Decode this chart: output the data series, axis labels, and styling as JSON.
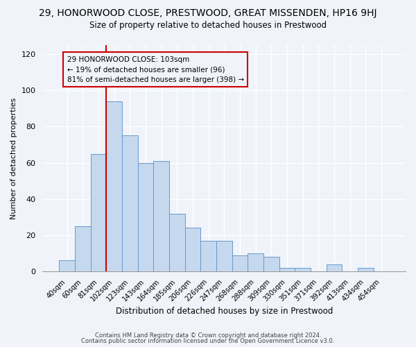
{
  "title": "29, HONORWOOD CLOSE, PRESTWOOD, GREAT MISSENDEN, HP16 9HJ",
  "subtitle": "Size of property relative to detached houses in Prestwood",
  "xlabel": "Distribution of detached houses by size in Prestwood",
  "ylabel": "Number of detached properties",
  "bar_labels": [
    "40sqm",
    "60sqm",
    "81sqm",
    "102sqm",
    "123sqm",
    "143sqm",
    "164sqm",
    "185sqm",
    "206sqm",
    "226sqm",
    "247sqm",
    "268sqm",
    "288sqm",
    "309sqm",
    "330sqm",
    "351sqm",
    "371sqm",
    "392sqm",
    "413sqm",
    "434sqm",
    "454sqm"
  ],
  "bar_values": [
    6,
    25,
    65,
    94,
    75,
    60,
    61,
    32,
    24,
    17,
    17,
    9,
    10,
    8,
    2,
    2,
    0,
    4,
    0,
    2,
    0
  ],
  "bar_color": "#c5d8ed",
  "bar_edge_color": "#6699cc",
  "vline_x_index": 3,
  "vline_color": "#cc0000",
  "annotation_line1": "29 HONORWOOD CLOSE: 103sqm",
  "annotation_line2": "← 19% of detached houses are smaller (96)",
  "annotation_line3": "81% of semi-detached houses are larger (398) →",
  "annotation_box_edgecolor": "#cc0000",
  "ylim": [
    0,
    125
  ],
  "yticks": [
    0,
    20,
    40,
    60,
    80,
    100,
    120
  ],
  "footer1": "Contains HM Land Registry data © Crown copyright and database right 2024.",
  "footer2": "Contains public sector information licensed under the Open Government Licence v3.0.",
  "bg_color": "#f0f4fa"
}
